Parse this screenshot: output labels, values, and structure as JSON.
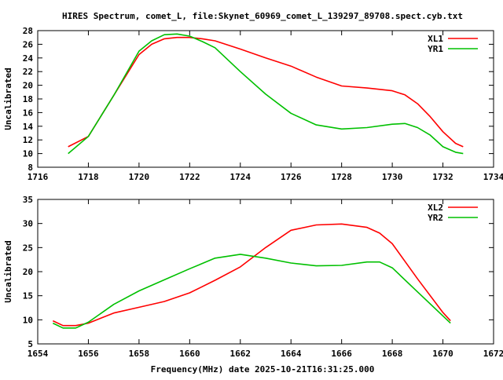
{
  "page": {
    "title": "HIRES Spectrum, comet_L, file:Skynet_60969_comet_L_139297_89708.spect.cyb.txt",
    "xlabel": "Frequency(MHz) date 2025-10-21T16:31:25.000"
  },
  "chart_data": [
    {
      "type": "line",
      "ylabel": "Uncalibrated",
      "xlim": [
        1716,
        1734
      ],
      "ylim": [
        8,
        28
      ],
      "xticks": [
        1716,
        1718,
        1720,
        1722,
        1724,
        1726,
        1728,
        1730,
        1732,
        1734
      ],
      "yticks": [
        8,
        10,
        12,
        14,
        16,
        18,
        20,
        22,
        24,
        26,
        28
      ],
      "legend_position": "top-right",
      "grid": false,
      "series": [
        {
          "name": "XL1",
          "color": "#ff0000",
          "x": [
            1717.2,
            1718.0,
            1719.0,
            1720.0,
            1720.5,
            1721.0,
            1721.5,
            1722.0,
            1722.5,
            1723.0,
            1724.0,
            1725.0,
            1726.0,
            1727.0,
            1728.0,
            1729.0,
            1730.0,
            1730.5,
            1731.0,
            1731.5,
            1732.0,
            1732.5,
            1732.8
          ],
          "y": [
            11.0,
            12.5,
            18.5,
            24.5,
            26.0,
            26.8,
            27.0,
            27.0,
            26.8,
            26.5,
            25.3,
            24.0,
            22.8,
            21.2,
            19.9,
            19.6,
            19.2,
            18.6,
            17.3,
            15.4,
            13.2,
            11.5,
            11.0
          ]
        },
        {
          "name": "YR1",
          "color": "#00c000",
          "x": [
            1717.2,
            1718.0,
            1719.0,
            1720.0,
            1720.5,
            1721.0,
            1721.5,
            1722.0,
            1722.5,
            1723.0,
            1724.0,
            1725.0,
            1726.0,
            1727.0,
            1728.0,
            1729.0,
            1730.0,
            1730.5,
            1731.0,
            1731.5,
            1732.0,
            1732.5,
            1732.8
          ],
          "y": [
            10.0,
            12.5,
            18.5,
            25.0,
            26.5,
            27.4,
            27.5,
            27.2,
            26.4,
            25.5,
            22.0,
            18.7,
            15.9,
            14.2,
            13.6,
            13.8,
            14.3,
            14.4,
            13.8,
            12.7,
            11.0,
            10.2,
            10.0
          ]
        }
      ]
    },
    {
      "type": "line",
      "ylabel": "Uncalibrated",
      "xlim": [
        1654,
        1672
      ],
      "ylim": [
        5,
        35
      ],
      "xticks": [
        1654,
        1656,
        1658,
        1660,
        1662,
        1664,
        1666,
        1668,
        1670,
        1672
      ],
      "yticks": [
        5,
        10,
        15,
        20,
        25,
        30,
        35
      ],
      "legend_position": "top-right",
      "grid": false,
      "series": [
        {
          "name": "XL2",
          "color": "#ff0000",
          "x": [
            1654.6,
            1655.0,
            1655.5,
            1656.0,
            1657.0,
            1658.0,
            1659.0,
            1660.0,
            1661.0,
            1662.0,
            1663.0,
            1664.0,
            1665.0,
            1666.0,
            1667.0,
            1667.5,
            1668.0,
            1669.0,
            1670.0,
            1670.3
          ],
          "y": [
            9.8,
            8.8,
            8.8,
            9.3,
            11.4,
            12.6,
            13.8,
            15.6,
            18.2,
            21.0,
            25.0,
            28.6,
            29.7,
            29.9,
            29.2,
            28.0,
            25.8,
            18.5,
            11.5,
            9.8
          ]
        },
        {
          "name": "YR2",
          "color": "#00c000",
          "x": [
            1654.6,
            1655.0,
            1655.5,
            1656.0,
            1657.0,
            1658.0,
            1659.0,
            1660.0,
            1661.0,
            1662.0,
            1663.0,
            1664.0,
            1665.0,
            1666.0,
            1667.0,
            1667.5,
            1668.0,
            1669.0,
            1670.0,
            1670.3
          ],
          "y": [
            9.3,
            8.3,
            8.3,
            9.5,
            13.2,
            16.0,
            18.3,
            20.6,
            22.8,
            23.6,
            22.8,
            21.8,
            21.2,
            21.3,
            22.0,
            22.0,
            20.8,
            15.8,
            10.8,
            9.3
          ]
        }
      ]
    }
  ]
}
